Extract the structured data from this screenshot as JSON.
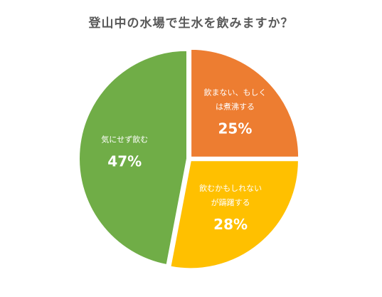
{
  "chart_data": {
    "type": "pie",
    "title": "登山中の水場で生水を飲みますか？",
    "slices": [
      {
        "label_lines": [
          "飲まない、もしく",
          "は煮沸する"
        ],
        "value": 25,
        "value_label": "25%",
        "color": "#ed7d31"
      },
      {
        "label_lines": [
          "飲むかもしれない",
          "が躊躇する"
        ],
        "value": 28,
        "value_label": "28%",
        "color": "#ffc000"
      },
      {
        "label_lines": [
          "気にせず飲む"
        ],
        "value": 47,
        "value_label": "47%",
        "color": "#70ad47"
      }
    ],
    "exploded": true,
    "legend": "none"
  }
}
